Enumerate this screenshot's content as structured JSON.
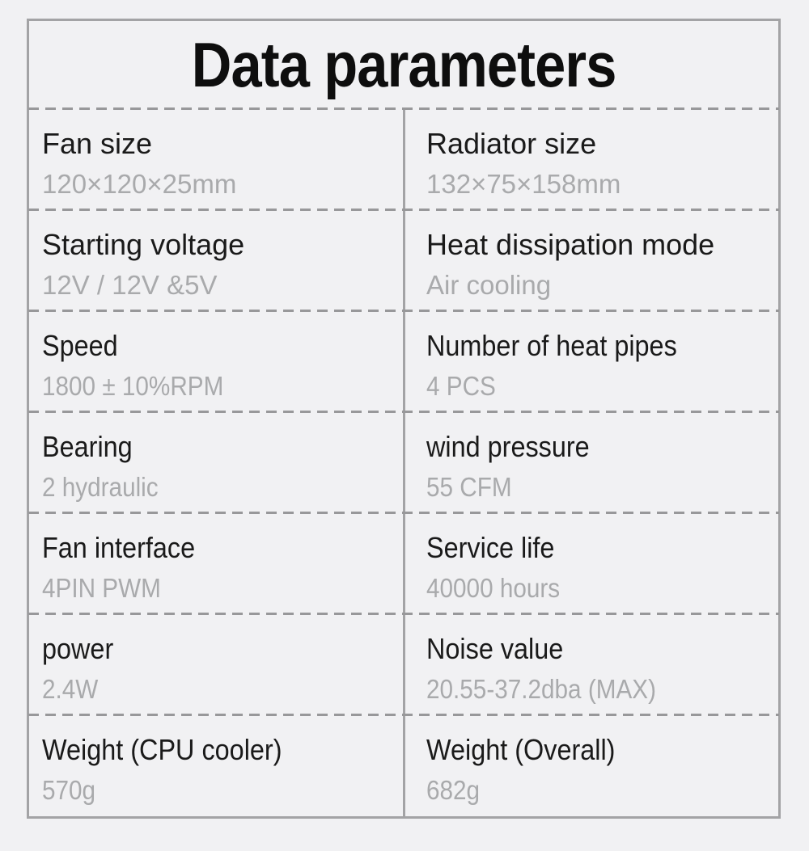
{
  "theme": {
    "bg": "#f1f1f3",
    "border": "#a3a3a5",
    "dash": "#98989a",
    "label": "#1a1a1a",
    "value": "#a9aaac",
    "title": "#0e0e0e"
  },
  "table": {
    "title": "Data parameters",
    "rows": [
      {
        "left": {
          "label": "Fan size",
          "value": "120×120×25mm"
        },
        "right": {
          "label": "Radiator size",
          "value": "132×75×158mm"
        }
      },
      {
        "left": {
          "label": "Starting voltage",
          "value": "12V / 12V &5V"
        },
        "right": {
          "label": "Heat dissipation mode",
          "value": "Air cooling"
        }
      },
      {
        "left": {
          "label": "Speed",
          "value": "1800 ± 10%RPM"
        },
        "right": {
          "label": "Number of heat pipes",
          "value": "4 PCS"
        }
      },
      {
        "left": {
          "label": "Bearing",
          "value": "2 hydraulic"
        },
        "right": {
          "label": "wind pressure",
          "value": "55 CFM"
        }
      },
      {
        "left": {
          "label": "Fan interface",
          "value": "4PIN PWM"
        },
        "right": {
          "label": "Service life",
          "value": "40000 hours"
        }
      },
      {
        "left": {
          "label": "power",
          "value": "2.4W"
        },
        "right": {
          "label": "Noise value",
          "value": "20.55-37.2dba (MAX)"
        }
      },
      {
        "left": {
          "label": "Weight (CPU cooler)",
          "value": "570g"
        },
        "right": {
          "label": "Weight (Overall)",
          "value": "682g"
        }
      }
    ]
  }
}
